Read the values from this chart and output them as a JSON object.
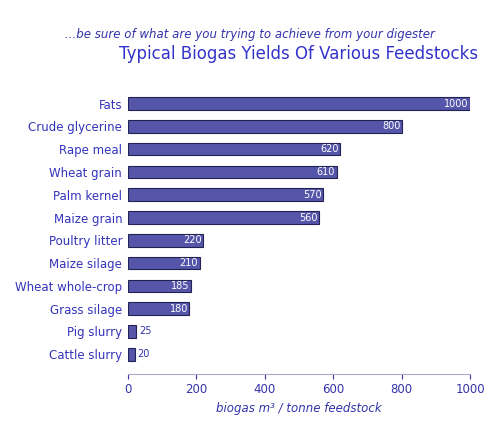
{
  "title": "Typical Biogas Yields Of Various Feedstocks",
  "subtitle": "...be sure of what are you trying to achieve from your digester",
  "xlabel": "biogas m³ / tonne feedstock",
  "categories": [
    "Cattle slurry",
    "Pig slurry",
    "Grass silage",
    "Wheat whole-crop",
    "Maize silage",
    "Poultry litter",
    "Maize grain",
    "Palm kernel",
    "Wheat grain",
    "Rape meal",
    "Crude glycerine",
    "Fats"
  ],
  "values": [
    20,
    25,
    180,
    185,
    210,
    220,
    560,
    570,
    610,
    620,
    800,
    1000
  ],
  "bar_color": "#5555aa",
  "bar_edge_color": "#222255",
  "label_color": "#3333bb",
  "title_color": "#3333cc",
  "subtitle_color": "#3333aa",
  "xlabel_color": "#3333aa",
  "tick_color": "#3333aa",
  "value_label_color_inside": "#ffffff",
  "value_label_color_outside": "#3333aa",
  "xlim": [
    0,
    1000
  ],
  "bar_height": 0.55,
  "background_color": "#ffffff",
  "title_fontsize": 12,
  "subtitle_fontsize": 8.5,
  "label_fontsize": 8.5,
  "value_fontsize": 7,
  "xlabel_fontsize": 8.5,
  "small_bar_threshold": 50
}
